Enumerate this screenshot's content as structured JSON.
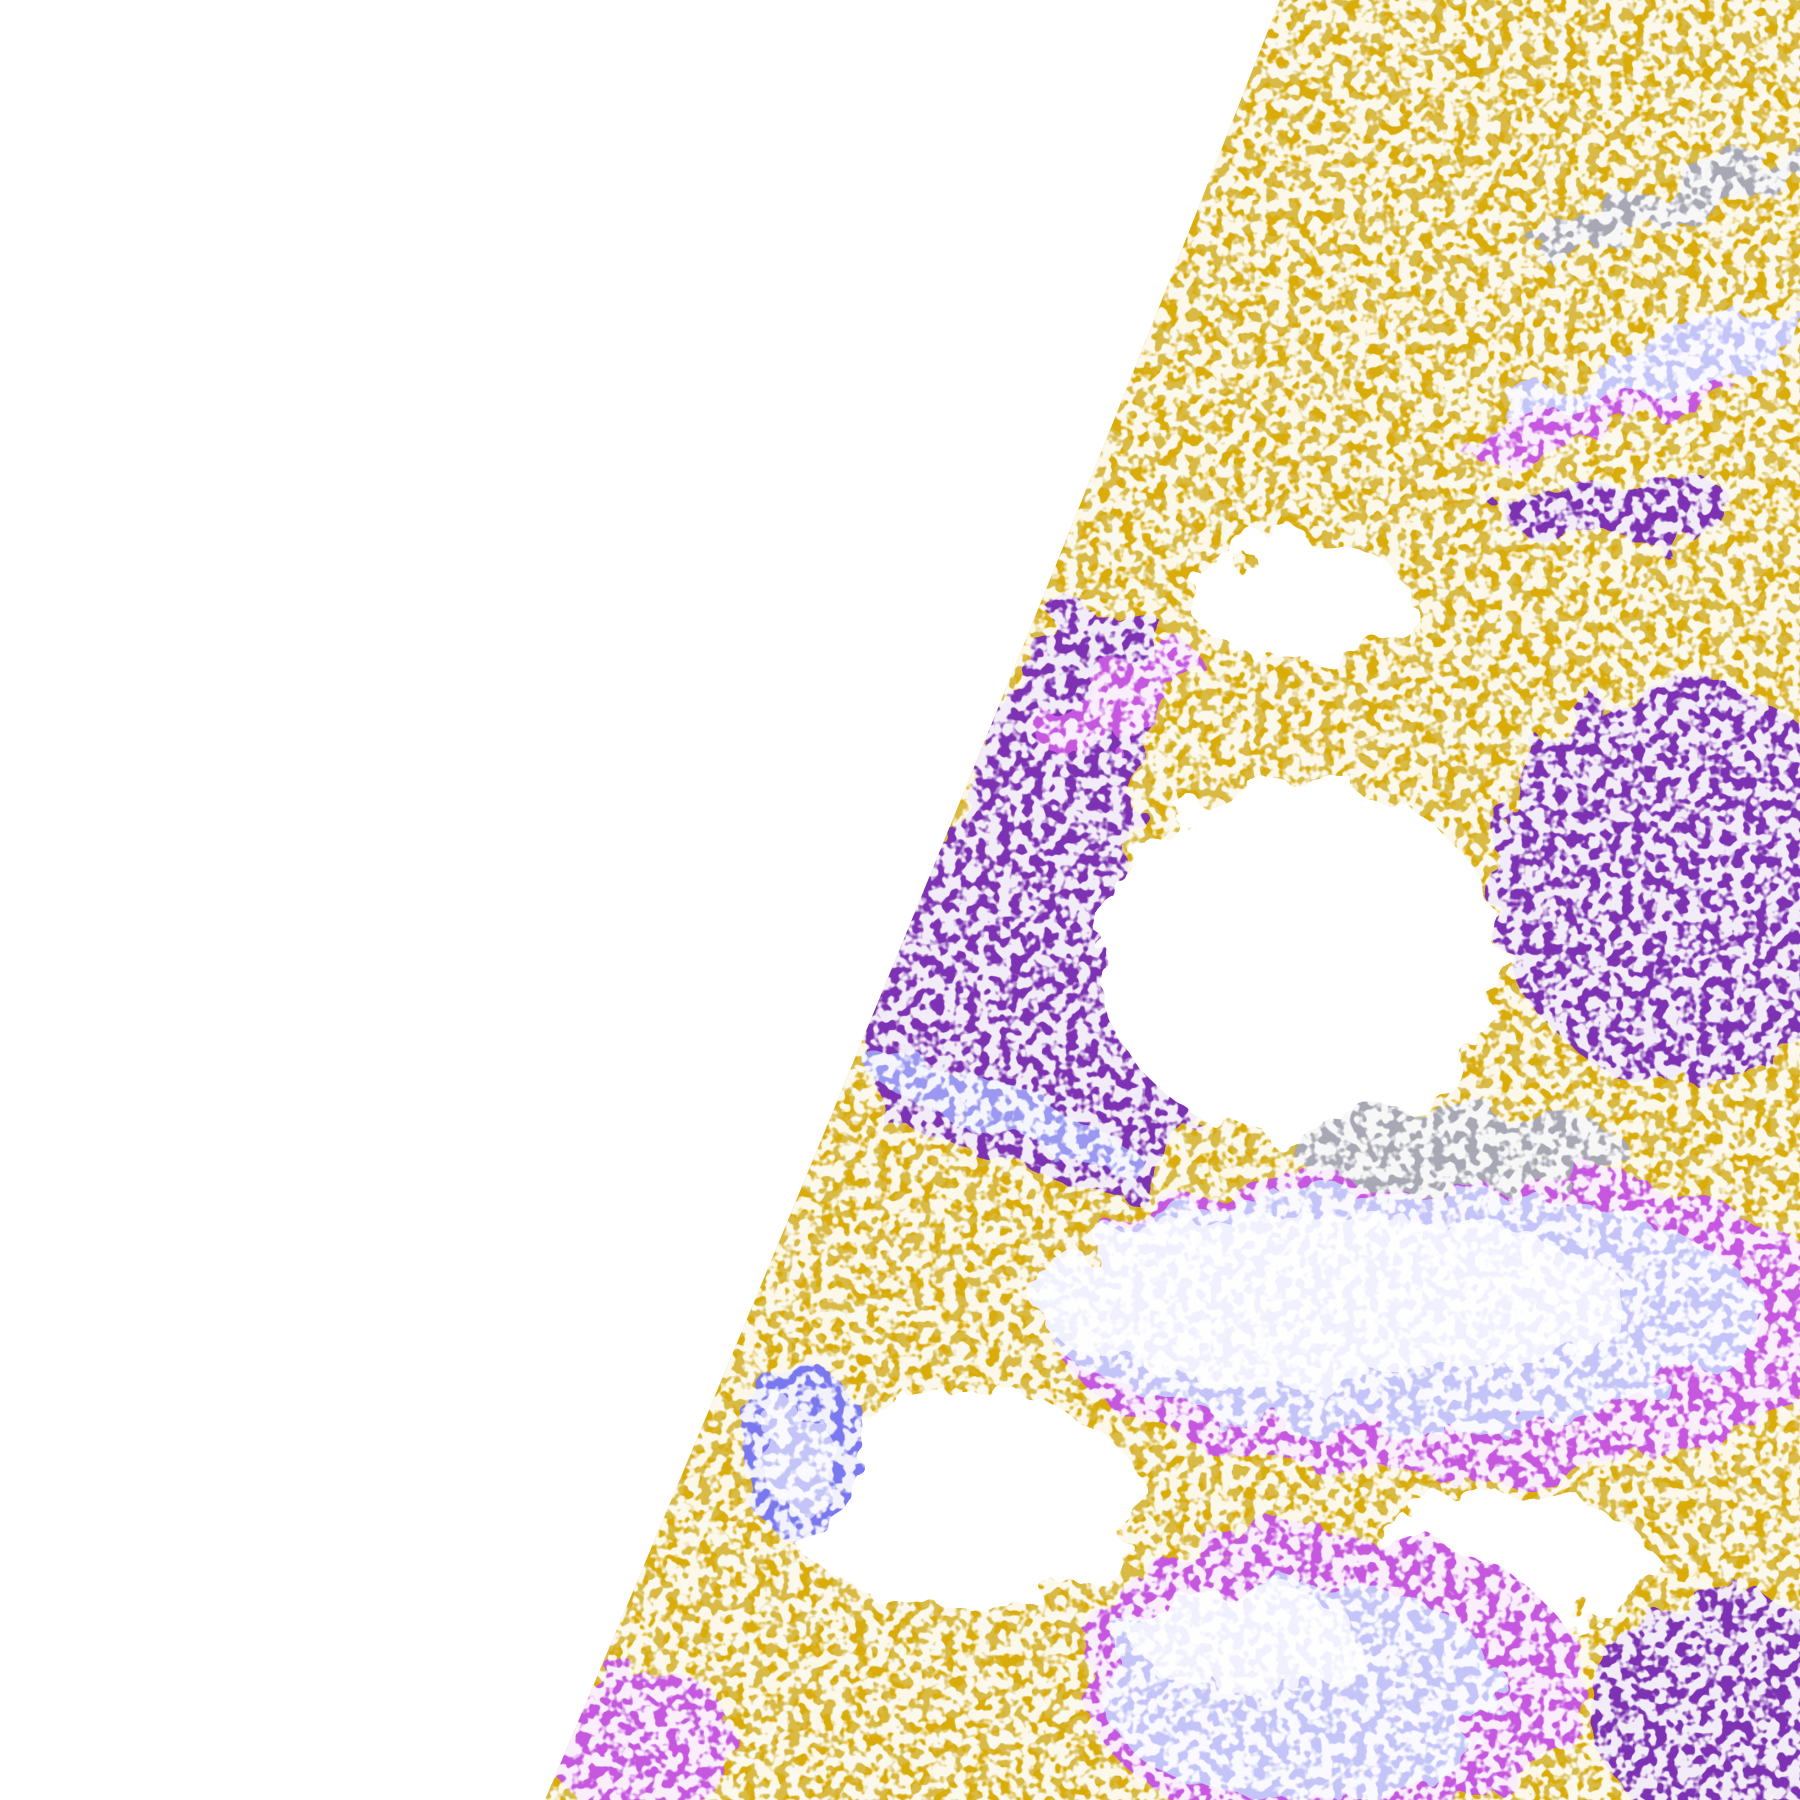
{
  "image": {
    "kind": "false-color satellite cloud classification view of the Earth's limb",
    "colors": {
      "space": "#ffffff",
      "gold": "#d9ac0a",
      "dark_gold": "#b07c10",
      "purple": "#7b30b2",
      "magenta": "#c658e0",
      "lavender": "#c4c4f8",
      "pale": "#f0f0ff",
      "blue": "#7a78ee",
      "grey": "#a8a8b4",
      "white": "#ffffff"
    }
  }
}
